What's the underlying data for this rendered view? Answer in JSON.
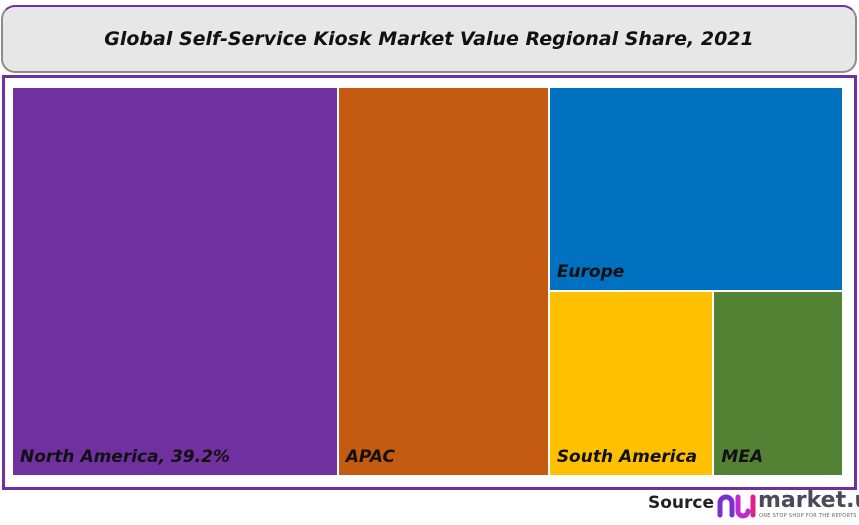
{
  "chart_data": {
    "type": "treemap",
    "title": "Global Self-Service Kiosk  Market Value Regional Share, 2021",
    "unit": "%",
    "items": [
      {
        "name": "North America",
        "label": "North America, 39.2%",
        "value": 39.2,
        "color": "#7030a0"
      },
      {
        "name": "APAC",
        "label": "APAC",
        "value": 25.4,
        "color": "#c55a11"
      },
      {
        "name": "Europe",
        "label": "Europe",
        "value": 18.6,
        "color": "#0070c0"
      },
      {
        "name": "South America",
        "label": "South America",
        "value": 9.4,
        "color": "#ffc000"
      },
      {
        "name": "MEA",
        "label": "MEA",
        "value": 7.4,
        "color": "#548235"
      }
    ]
  },
  "footer": {
    "source_label": "Source",
    "brand": "market.us",
    "tagline": "ONE STOP SHOP FOR THE REPORTS"
  },
  "colors": {
    "frame": "#7030a0",
    "title_bg": "#e7e7e7"
  }
}
